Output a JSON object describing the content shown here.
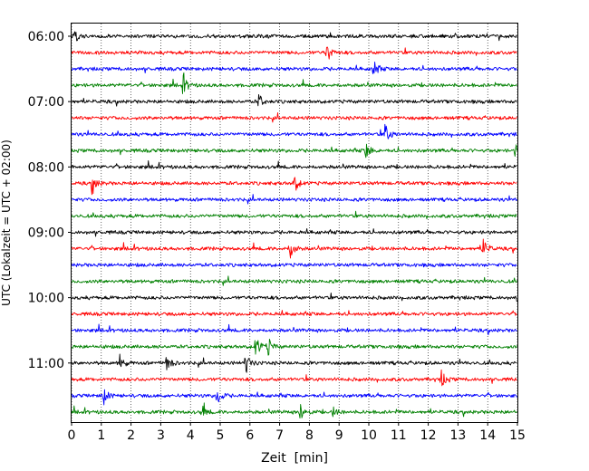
{
  "chart_data": {
    "type": "line",
    "title": "",
    "xlabel": "Zeit  [min]",
    "ylabel": "UTC (Lokalzeit = UTC + 02:00)",
    "xlim": [
      0,
      15
    ],
    "x_ticks": [
      "0",
      "1",
      "2",
      "3",
      "4",
      "5",
      "6",
      "7",
      "8",
      "9",
      "10",
      "11",
      "12",
      "13",
      "14",
      "15"
    ],
    "y_ticks": [
      "06:00",
      "07:00",
      "08:00",
      "09:00",
      "10:00",
      "11:00"
    ],
    "trace_count": 24,
    "trace_start_times": [
      "06:00",
      "06:15",
      "06:30",
      "06:45",
      "07:00",
      "07:15",
      "07:30",
      "07:45",
      "08:00",
      "08:15",
      "08:30",
      "08:45",
      "09:00",
      "09:15",
      "09:30",
      "09:45",
      "10:00",
      "10:15",
      "10:30",
      "10:45",
      "11:00",
      "11:15",
      "11:30",
      "11:45"
    ],
    "trace_colors": [
      "#000000",
      "#ff0000",
      "#0000ff",
      "#008000"
    ],
    "vertical_grid": "dotted",
    "events": [
      {
        "trace": 0,
        "x": 0.05,
        "amp": 1.0
      },
      {
        "trace": 1,
        "x": 8.6,
        "amp": 1.0
      },
      {
        "trace": 2,
        "x": 10.15,
        "amp": 1.0
      },
      {
        "trace": 3,
        "x": 3.75,
        "amp": 1.0
      },
      {
        "trace": 4,
        "x": 6.3,
        "amp": 0.8
      },
      {
        "trace": 6,
        "x": 10.55,
        "amp": 1.1
      },
      {
        "trace": 7,
        "x": 9.9,
        "amp": 0.9
      },
      {
        "trace": 7,
        "x": 14.95,
        "amp": 0.9
      },
      {
        "trace": 9,
        "x": 0.7,
        "amp": 1.1
      },
      {
        "trace": 9,
        "x": 7.5,
        "amp": 0.9
      },
      {
        "trace": 13,
        "x": 7.35,
        "amp": 1.2
      },
      {
        "trace": 13,
        "x": 13.85,
        "amp": 1.1
      },
      {
        "trace": 19,
        "x": 6.2,
        "amp": 1.1
      },
      {
        "trace": 19,
        "x": 6.6,
        "amp": 1.0
      },
      {
        "trace": 20,
        "x": 1.6,
        "amp": 1.0
      },
      {
        "trace": 20,
        "x": 3.2,
        "amp": 0.9
      },
      {
        "trace": 20,
        "x": 5.85,
        "amp": 1.2
      },
      {
        "trace": 21,
        "x": 12.45,
        "amp": 0.9
      },
      {
        "trace": 22,
        "x": 1.05,
        "amp": 1.1
      },
      {
        "trace": 22,
        "x": 4.9,
        "amp": 1.0
      },
      {
        "trace": 23,
        "x": 4.4,
        "amp": 0.6
      },
      {
        "trace": 23,
        "x": 7.7,
        "amp": 1.0
      },
      {
        "trace": 23,
        "x": 8.8,
        "amp": 0.5
      }
    ]
  }
}
